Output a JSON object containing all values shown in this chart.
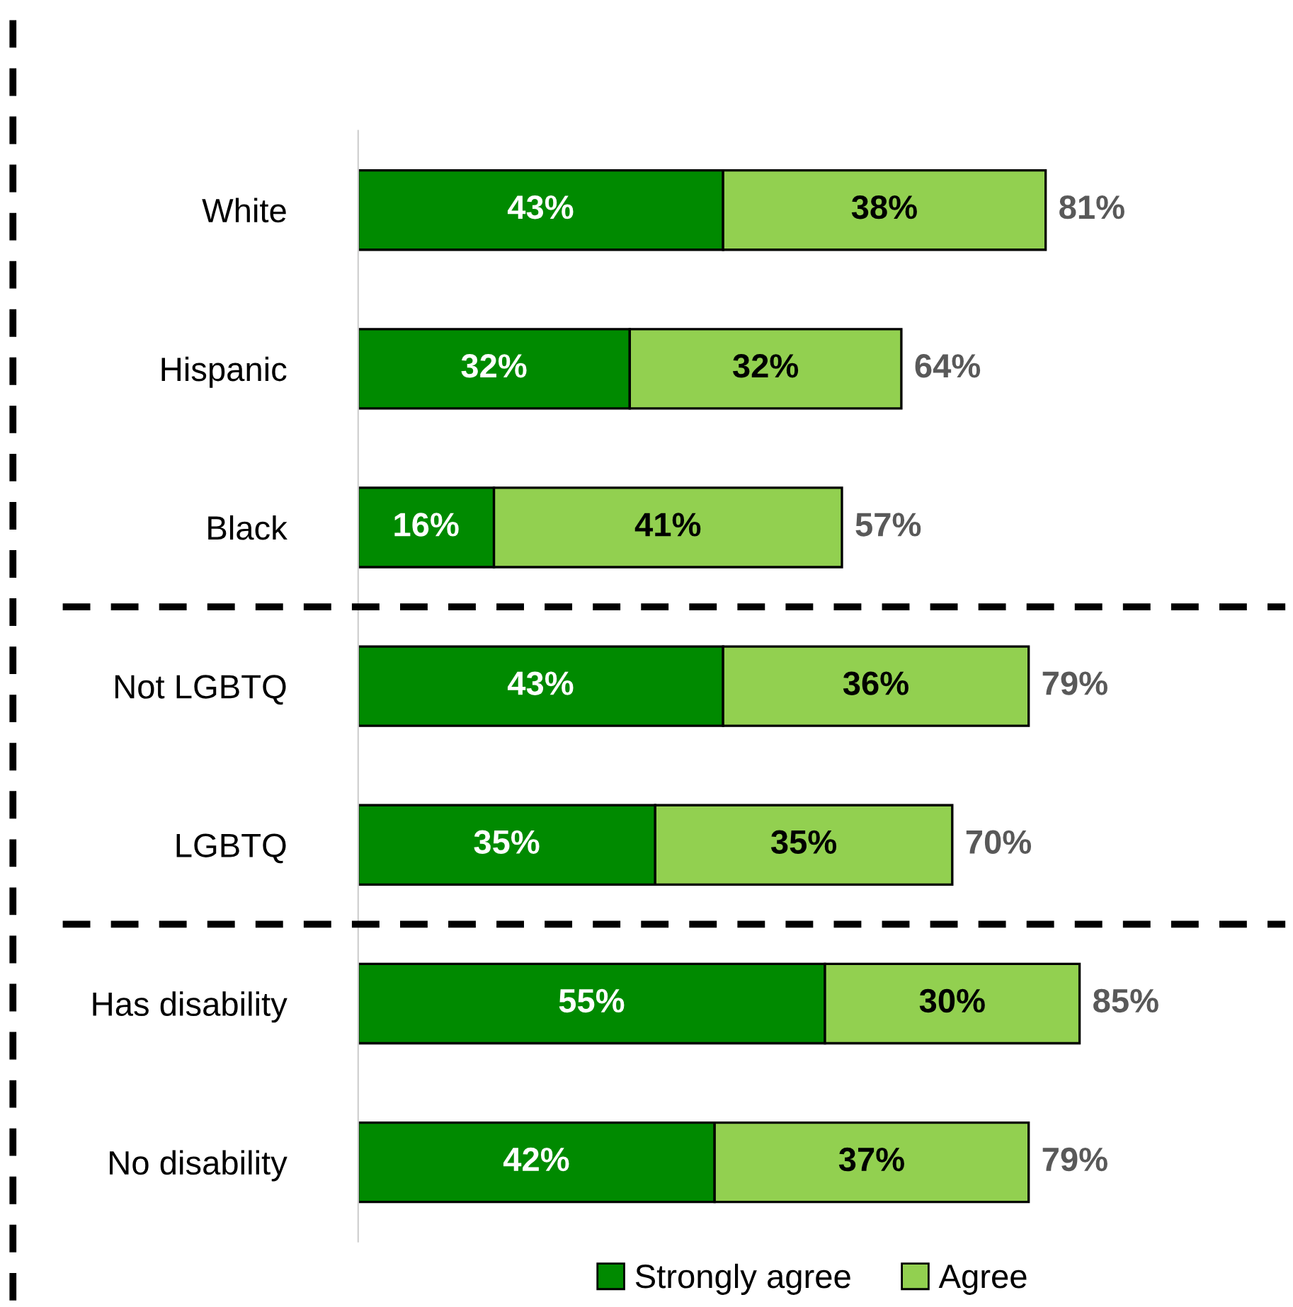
{
  "chart_data": {
    "type": "bar",
    "orientation": "horizontal",
    "stacked": true,
    "categories": [
      "White",
      "Hispanic",
      "Black",
      "Not LGBTQ",
      "LGBTQ",
      "Has disability",
      "No disability"
    ],
    "series": [
      {
        "name": "Strongly agree",
        "color": "#008a00",
        "values": [
          43,
          32,
          16,
          43,
          35,
          55,
          42
        ],
        "value_labels": [
          "43%",
          "32%",
          "16%",
          "43%",
          "35%",
          "55%",
          "42%"
        ]
      },
      {
        "name": "Agree",
        "color": "#92d050",
        "values": [
          38,
          32,
          41,
          36,
          35,
          30,
          37
        ],
        "value_labels": [
          "38%",
          "32%",
          "41%",
          "36%",
          "35%",
          "30%",
          "37%"
        ]
      }
    ],
    "totals": [
      "81%",
      "64%",
      "57%",
      "79%",
      "70%",
      "85%",
      "79%"
    ],
    "legend": "bottom",
    "grid": false,
    "tick_labels": "y"
  }
}
